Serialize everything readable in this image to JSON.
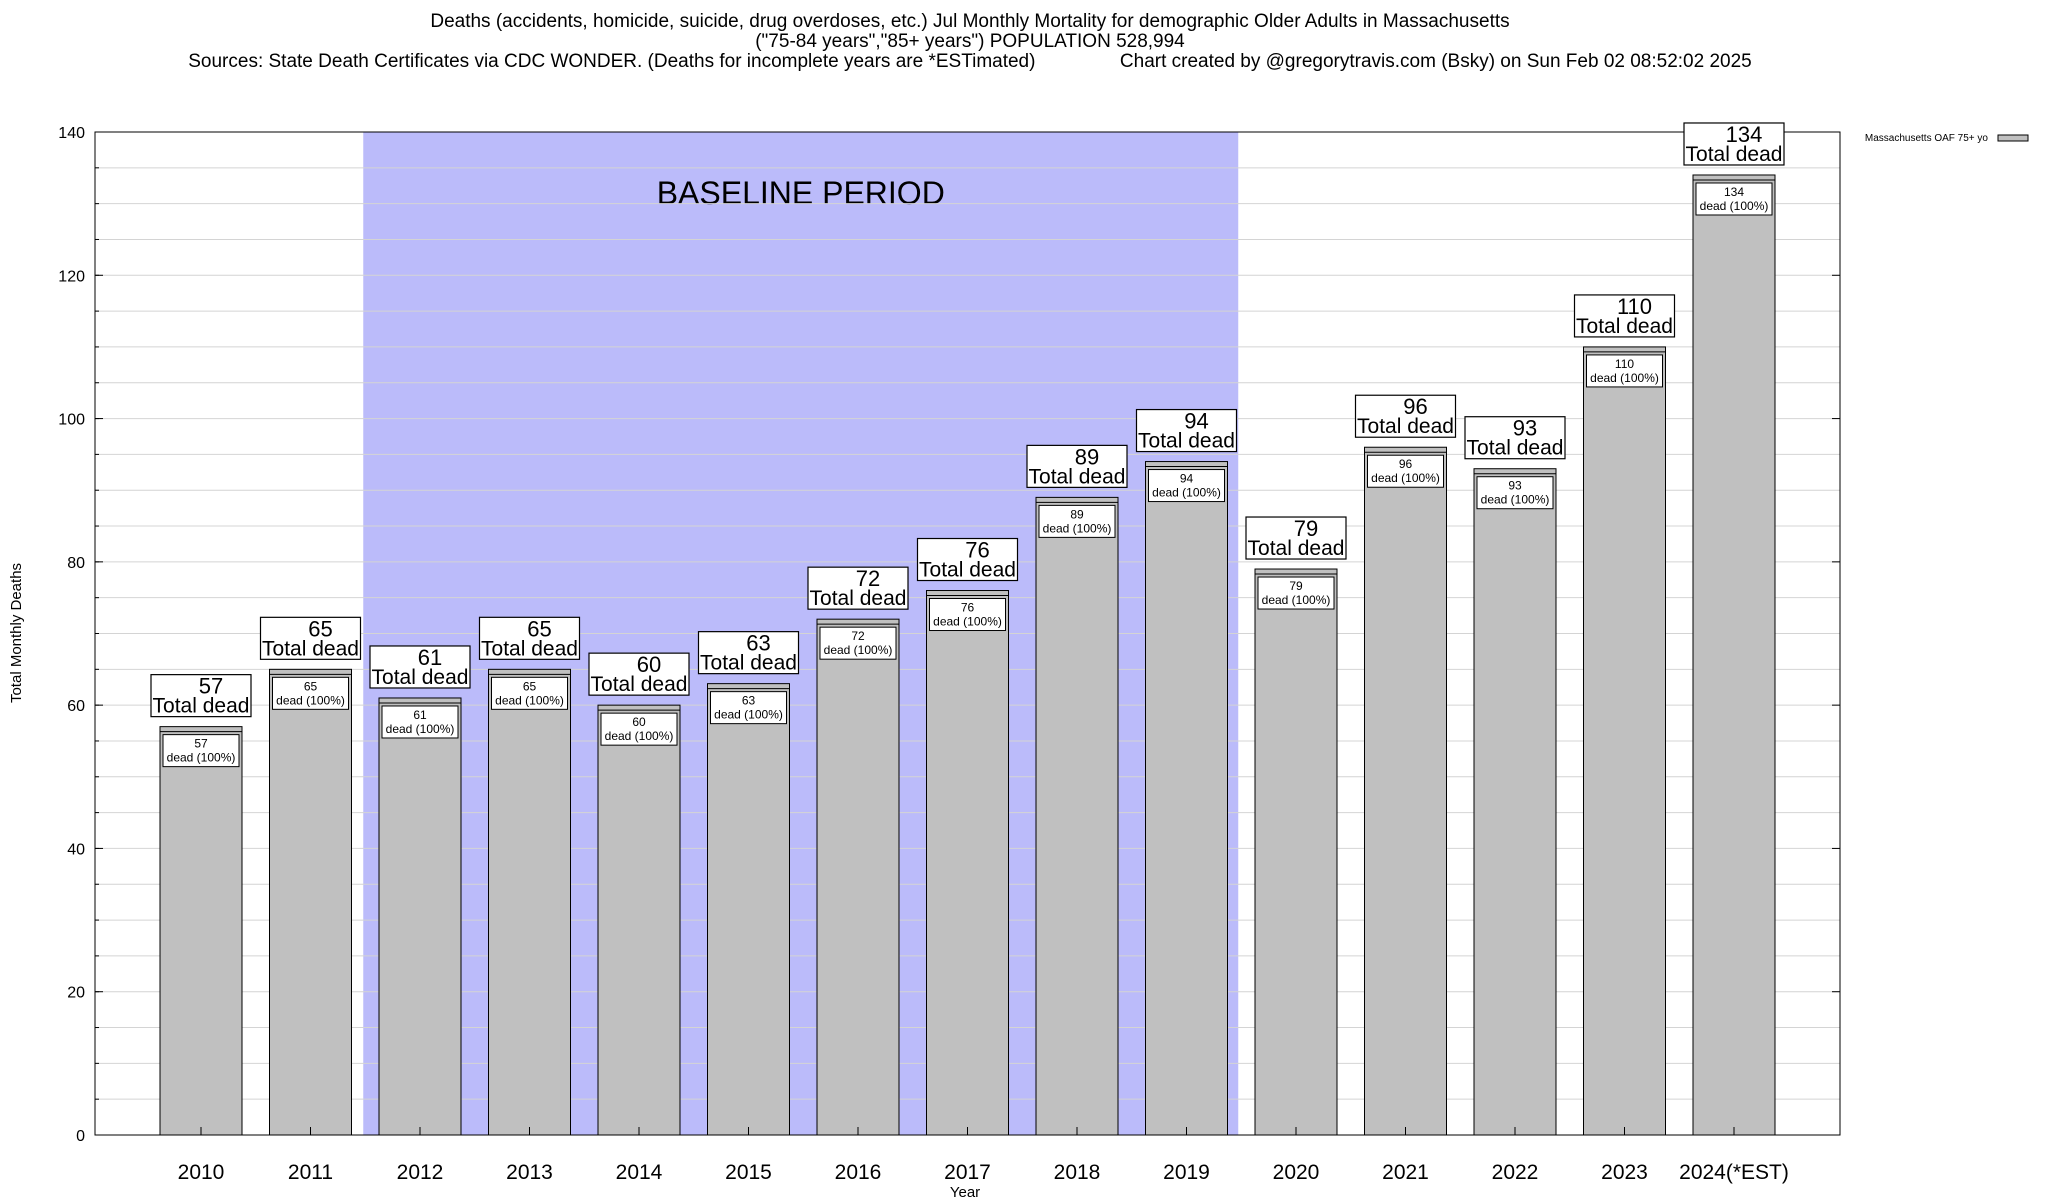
{
  "chart_data": {
    "type": "bar",
    "title_lines": [
      "Deaths (accidents, homicide, suicide, drug overdoses, etc.) Jul Monthly Mortality for demographic Older Adults in Massachusetts",
      "(\"75-84 years\",\"85+ years\") POPULATION 528,994",
      "Sources: State Death Certificates via CDC WONDER. (Deaths for incomplete years are *ESTimated)                Chart created by @gregorytravis.com (Bsky) on Sun Feb 02 08:52:02 2025"
    ],
    "xlabel": "Year",
    "ylabel": "Total Monthly Deaths",
    "ylim": [
      0,
      140
    ],
    "yticks": [
      0,
      20,
      40,
      60,
      80,
      100,
      120,
      140
    ],
    "categories": [
      "2010",
      "2011",
      "2012",
      "2013",
      "2014",
      "2015",
      "2016",
      "2017",
      "2018",
      "2019",
      "2020",
      "2021",
      "2022",
      "2023",
      "2024(*EST)"
    ],
    "series": [
      {
        "name": "Massachusetts OAF 75+ yo",
        "values": [
          57,
          65,
          61,
          65,
          60,
          63,
          72,
          76,
          89,
          94,
          79,
          96,
          93,
          110,
          134
        ],
        "color": "#c0c0c0"
      }
    ],
    "top_label_text": "Total dead",
    "inner_label_text": "dead (100%)",
    "baseline": {
      "label": "BASELINE PERIOD",
      "start_category": "2012",
      "end_category": "2019",
      "color": "#bbbbfa"
    },
    "legend": {
      "position": "top-right",
      "label": "Massachusetts OAF 75+ yo"
    },
    "grid": true
  }
}
